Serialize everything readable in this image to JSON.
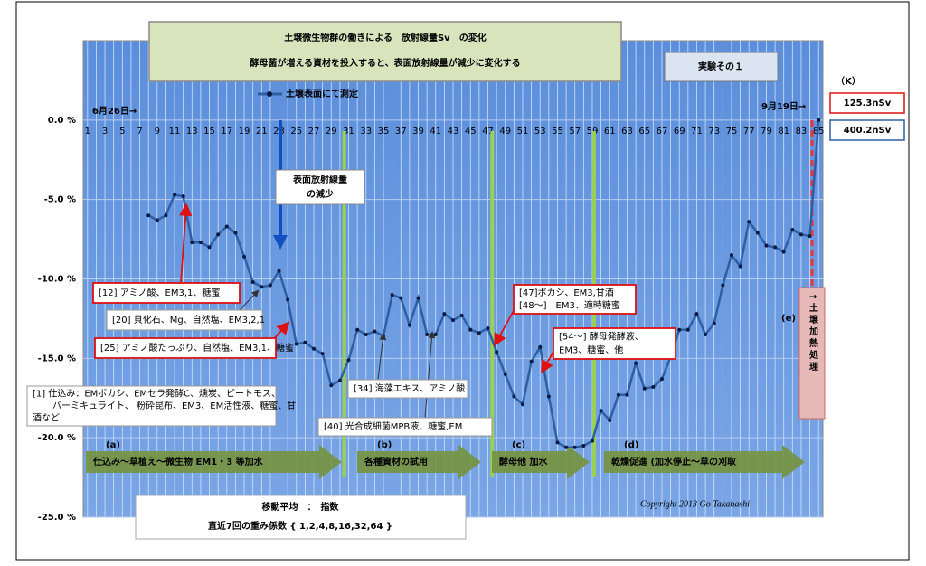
{
  "chart_data": {
    "type": "line",
    "title": "土壌微生物群の働きによる　放射線量Sv　の変化",
    "subtitle": "酵母菌が増える資材を投入すると、表面放射線量が減少に変化する",
    "experiment": "実験その１",
    "x": [
      8,
      9,
      10,
      11,
      12,
      13,
      14,
      15,
      16,
      17,
      18,
      19,
      20,
      21,
      22,
      23,
      24,
      25,
      26,
      27,
      28,
      29,
      30,
      31,
      32,
      33,
      34,
      35,
      36,
      37,
      38,
      39,
      40,
      41,
      42,
      43,
      44,
      45,
      46,
      47,
      48,
      49,
      50,
      51,
      52,
      53,
      54,
      55,
      56,
      57,
      58,
      59,
      60,
      61,
      62,
      63,
      64,
      65,
      66,
      67,
      68,
      69,
      70,
      71,
      72,
      73,
      74,
      75,
      76,
      77,
      78,
      79,
      80,
      81,
      82,
      83,
      84,
      85
    ],
    "series": [
      {
        "name": "土壌表面にて測定",
        "color": "#2e5fa3",
        "values": [
          -6.0,
          -6.3,
          -6.0,
          -4.7,
          -4.8,
          -7.7,
          -7.7,
          -8.0,
          -7.2,
          -6.7,
          -7.1,
          -8.6,
          -10.2,
          -10.5,
          -10.4,
          -9.5,
          -11.3,
          -14.1,
          -14.0,
          -14.4,
          -14.7,
          -16.7,
          -16.4,
          -15.1,
          -13.2,
          -13.5,
          -13.3,
          -13.6,
          -11.0,
          -11.2,
          -12.9,
          -11.2,
          -13.5,
          -13.5,
          -12.2,
          -12.6,
          -12.3,
          -13.2,
          -13.4,
          -13.1,
          -14.6,
          -16.0,
          -17.4,
          -17.9,
          -15.2,
          -14.3,
          -17.4,
          -20.3,
          -20.6,
          -20.6,
          -20.5,
          -20.2,
          -18.3,
          -18.9,
          -17.3,
          -17.3,
          -15.3,
          -16.9,
          -16.8,
          -16.3,
          -14.9,
          -13.2,
          -13.2,
          -12.2,
          -13.5,
          -12.8,
          -10.4,
          -8.5,
          -9.2,
          -6.4,
          -7.1,
          -7.9,
          -8.0,
          -8.3,
          -6.9,
          -7.2,
          -7.3,
          0.0
        ]
      }
    ],
    "xlim": [
      0.5,
      85.5
    ],
    "xticks": [
      1,
      3,
      5,
      7,
      9,
      11,
      13,
      15,
      17,
      19,
      21,
      23,
      25,
      27,
      29,
      31,
      33,
      35,
      37,
      39,
      41,
      43,
      45,
      47,
      49,
      51,
      53,
      55,
      57,
      59,
      61,
      63,
      65,
      67,
      69,
      71,
      73,
      75,
      77,
      79,
      81,
      83,
      85
    ],
    "ylim": [
      -25,
      5
    ],
    "yticks": [
      {
        "value": 0,
        "label": "0.0 %"
      },
      {
        "value": -5,
        "label": "-5.0 %"
      },
      {
        "value": -10,
        "label": "-10.0 %"
      },
      {
        "value": -15,
        "label": "-15.0 %"
      },
      {
        "value": -20,
        "label": "-20.0 %"
      },
      {
        "value": -25,
        "label": "-25.0 %"
      }
    ],
    "grid": true,
    "start_date": "6月26日→",
    "end_date": "9月19日→",
    "k_label": "（K）",
    "k_values": [
      "125.3nSv",
      "400.2nSv"
    ],
    "heat_note": "↑土壌加熱処理",
    "decrease_note": [
      "表面放射線量",
      "の減少"
    ],
    "annotations": [
      "[12] アミノ酸、EM3,1、糖蜜",
      "[20] 貝化石、Mg、自然塩、EM3,2,1",
      "[25] アミノ酸たっぷり、自然塩、EM3,1、糖蜜",
      "[1] 仕込み：EMボカシ、EMセラ発酵C、燻炭、ピートモス、",
      "バーミキュライト、 粉砕昆布、EM3、EM活性液、糖蜜、甘",
      "酒など",
      "[34] 海藻エキス、アミノ酸",
      "[40] 光合成細菌MPB液、糖蜜,EM",
      "[47]ボカシ、EM3,甘酒",
      "[48～]　EM3、適時糖蜜",
      "[54～] 酵母発酵液、",
      "EM3、糖蜜、他"
    ],
    "phases": [
      {
        "label": "(a)",
        "text": "仕込み～草植え～微生物 EM1・3 等加水"
      },
      {
        "label": "(b)",
        "text": "各種資材の試用"
      },
      {
        "label": "(c)",
        "text": "酵母他 加水"
      },
      {
        "label": "(d)",
        "text": "乾燥促進 (加水停止～草の刈取"
      },
      {
        "label": "(e)"
      }
    ],
    "method": [
      "移動平均　：　指数",
      "直近7回の重み係数 { 1,2,4,8,16,32,64 }"
    ],
    "copyright": "Copyright 2013 Go Takahashi"
  }
}
